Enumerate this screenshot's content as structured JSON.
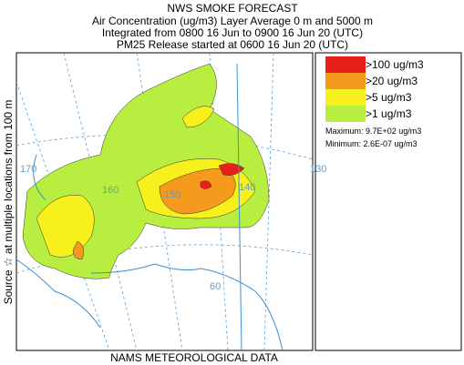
{
  "header": {
    "title": "NWS SMOKE FORECAST",
    "lines": [
      "Air Concentration (ug/m3) Layer Average     0 m  and  5000 m",
      "Integrated from 0800 16 Jun to 0900 16 Jun 20 (UTC)",
      "PM25 Release started at 0600 16 Jun 20 (UTC)"
    ]
  },
  "side_label": "Source ☆  at multiple locations  from   100 m",
  "map": {
    "labels": [
      "170",
      "160",
      "150",
      "140",
      "130",
      "60"
    ]
  },
  "legend": {
    "items": [
      {
        "label": ">100 ug/m3",
        "color": "#e8201a"
      },
      {
        "label": ">20 ug/m3",
        "color": "#f59a1c"
      },
      {
        "label": ">5 ug/m3",
        "color": "#f7f01c"
      },
      {
        "label": ">1 ug/m3",
        "color": "#b8ee40"
      }
    ],
    "maximum": "Maximum: 9.7E+02 ug/m3",
    "minimum": "Minimum: 2.6E-07 ug/m3"
  },
  "footer": "NAMS METEOROLOGICAL DATA"
}
